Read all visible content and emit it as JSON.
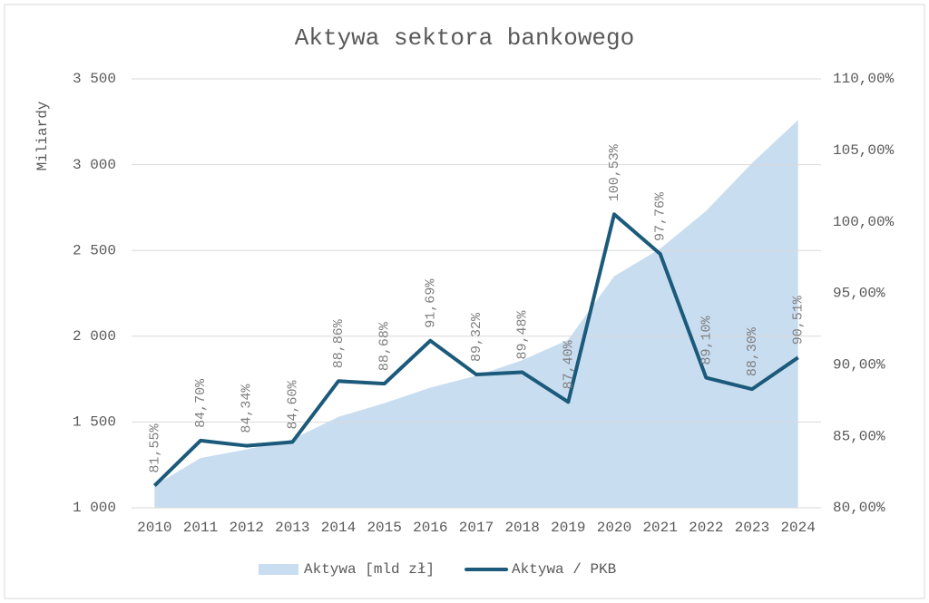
{
  "chart_data": {
    "type": "combo",
    "title": "Aktywa sektora bankowego",
    "y_label": "Miliardy",
    "categories": [
      "2010",
      "2011",
      "2012",
      "2013",
      "2014",
      "2015",
      "2016",
      "2017",
      "2018",
      "2019",
      "2020",
      "2021",
      "2022",
      "2023",
      "2024"
    ],
    "series": [
      {
        "name": "Aktywa [mld zł]",
        "type": "area",
        "color": "#c9ddf0",
        "values": [
          1130,
          1290,
          1340,
          1400,
          1530,
          1610,
          1700,
          1770,
          1860,
          1980,
          2350,
          2510,
          2730,
          3010,
          3260
        ]
      },
      {
        "name": "Aktywa / PKB",
        "type": "line",
        "axis": "y2",
        "color": "#1b5a7a",
        "values": [
          81.55,
          84.7,
          84.34,
          84.6,
          88.86,
          88.68,
          91.69,
          89.32,
          89.48,
          87.4,
          100.53,
          97.76,
          89.1,
          88.3,
          90.51
        ],
        "value_labels": [
          "81,55%",
          "84,70%",
          "84,34%",
          "84,60%",
          "88,86%",
          "88,68%",
          "91,69%",
          "89,32%",
          "89,48%",
          "87,40%",
          "100,53%",
          "97,76%",
          "89,10%",
          "88,30%",
          "90,51%"
        ]
      }
    ],
    "ylim": [
      1000,
      3500
    ],
    "yticks": [
      {
        "value": 1000,
        "label": "1 000"
      },
      {
        "value": 1500,
        "label": "1 500"
      },
      {
        "value": 2000,
        "label": "2 000"
      },
      {
        "value": 2500,
        "label": "2 500"
      },
      {
        "value": 3000,
        "label": "3 000"
      },
      {
        "value": 3500,
        "label": "3 500"
      }
    ],
    "y2lim": [
      80,
      110
    ],
    "y2ticks": [
      {
        "value": 80,
        "label": "80,00%"
      },
      {
        "value": 85,
        "label": "85,00%"
      },
      {
        "value": 90,
        "label": "90,00%"
      },
      {
        "value": 95,
        "label": "95,00%"
      },
      {
        "value": 100,
        "label": "100,00%"
      },
      {
        "value": 105,
        "label": "105,00%"
      },
      {
        "value": 110,
        "label": "110,00%"
      }
    ],
    "grid": true,
    "legend": "bottom"
  }
}
